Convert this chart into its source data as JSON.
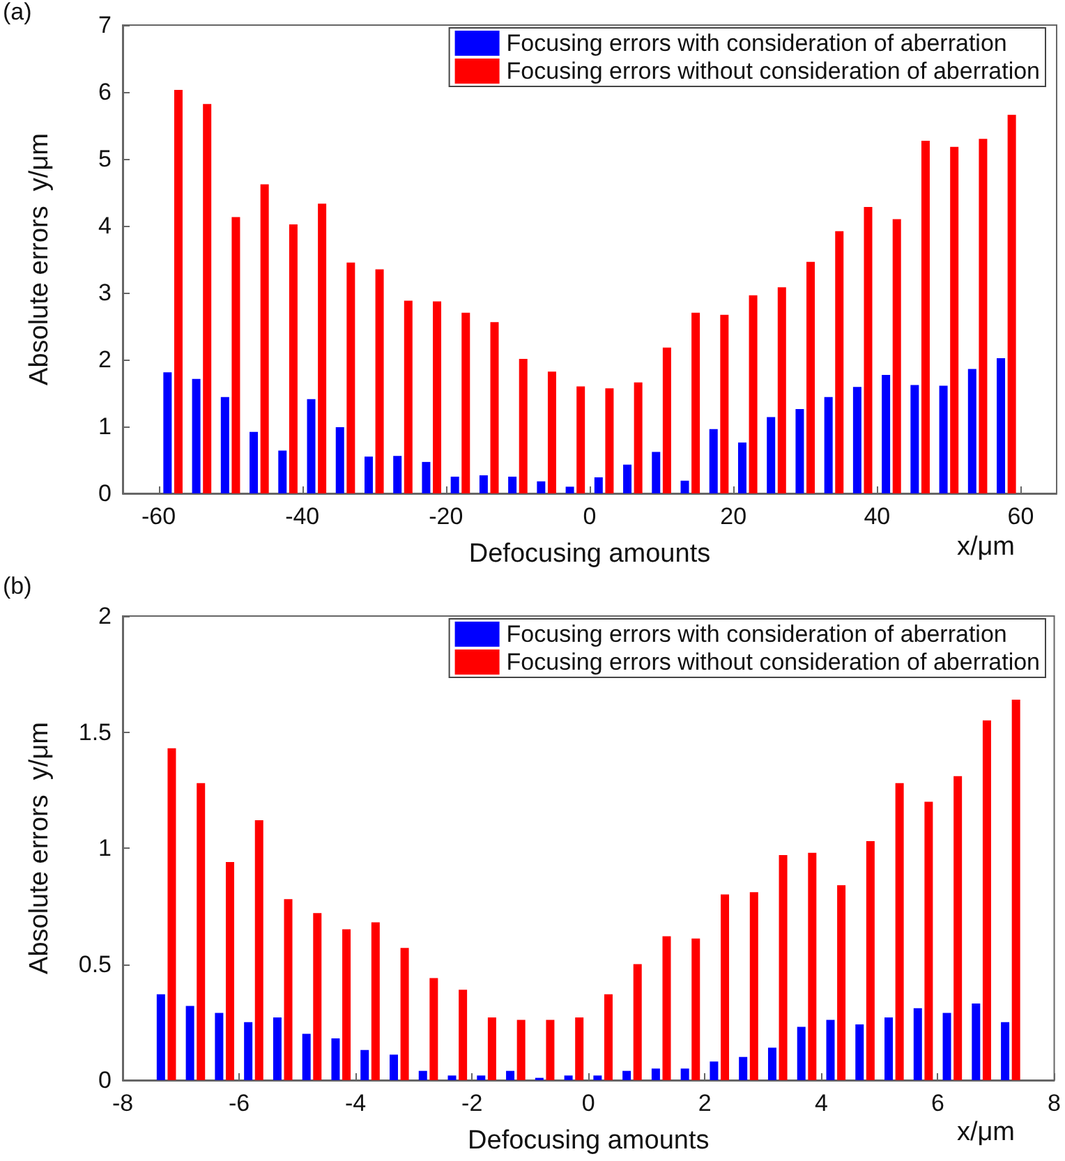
{
  "chart_data": [
    {
      "type": "bar",
      "title": "(a)",
      "xlabel": "Defocusing amounts",
      "ylabel": "Absolute errors  y/μm",
      "annotations": [
        "x/μm"
      ],
      "x": [
        -58,
        -54,
        -50,
        -46,
        -42,
        -38,
        -34,
        -30,
        -26,
        -22,
        -18,
        -14,
        -10,
        -6,
        -2,
        2,
        6,
        10,
        14,
        18,
        22,
        26,
        30,
        34,
        38,
        42,
        46,
        50,
        54,
        58
      ],
      "series": [
        {
          "name": "Focusing errors with consideration of aberration",
          "color": "#0000ff",
          "values": [
            1.81,
            1.71,
            1.44,
            0.92,
            0.64,
            1.41,
            0.99,
            0.55,
            0.56,
            0.47,
            0.25,
            0.27,
            0.25,
            0.18,
            0.1,
            0.24,
            0.43,
            0.62,
            0.19,
            0.96,
            0.76,
            1.14,
            1.26,
            1.44,
            1.59,
            1.77,
            1.62,
            1.61,
            1.86,
            2.02
          ]
        },
        {
          "name": "Focusing errors without consideration of aberration",
          "color": "#ff0000",
          "values": [
            6.03,
            5.82,
            4.13,
            4.62,
            4.02,
            4.33,
            3.45,
            3.35,
            2.88,
            2.87,
            2.7,
            2.56,
            2.01,
            1.82,
            1.6,
            1.57,
            1.66,
            2.18,
            2.7,
            2.67,
            2.96,
            3.08,
            3.46,
            3.92,
            4.28,
            4.1,
            5.27,
            5.18,
            5.3,
            5.66
          ]
        }
      ],
      "xlim": [
        -65,
        65
      ],
      "xticks": [
        -60,
        -40,
        -20,
        0,
        20,
        40,
        60
      ],
      "ylim": [
        0,
        7
      ],
      "yticks": [
        0,
        1,
        2,
        3,
        4,
        5,
        6,
        7
      ],
      "grid": false,
      "legend": "top right"
    },
    {
      "type": "bar",
      "title": "(b)",
      "xlabel": "Defocusing amounts",
      "ylabel": "Absolute errors  y/μm",
      "annotations": [
        "x/μm"
      ],
      "x": [
        -7.25,
        -6.75,
        -6.25,
        -5.75,
        -5.25,
        -4.75,
        -4.25,
        -3.75,
        -3.25,
        -2.75,
        -2.25,
        -1.75,
        -1.25,
        -0.75,
        -0.25,
        0.25,
        0.75,
        1.25,
        1.75,
        2.25,
        2.75,
        3.25,
        3.75,
        4.25,
        4.75,
        5.25,
        5.75,
        6.25,
        6.75,
        7.25
      ],
      "series": [
        {
          "name": "Focusing errors with consideration of aberration",
          "color": "#0000ff",
          "values": [
            0.37,
            0.32,
            0.29,
            0.25,
            0.27,
            0.2,
            0.18,
            0.13,
            0.11,
            0.04,
            0.02,
            0.02,
            0.04,
            0.01,
            0.02,
            0.02,
            0.04,
            0.05,
            0.05,
            0.08,
            0.1,
            0.14,
            0.23,
            0.26,
            0.24,
            0.27,
            0.31,
            0.29,
            0.33,
            0.25
          ]
        },
        {
          "name": "Focusing errors without consideration of aberration",
          "color": "#ff0000",
          "values": [
            1.43,
            1.28,
            0.94,
            1.12,
            0.78,
            0.72,
            0.65,
            0.68,
            0.57,
            0.44,
            0.39,
            0.27,
            0.26,
            0.26,
            0.27,
            0.37,
            0.5,
            0.62,
            0.61,
            0.8,
            0.81,
            0.97,
            0.98,
            0.84,
            1.03,
            1.28,
            1.2,
            1.31,
            1.55,
            1.64
          ]
        }
      ],
      "xlim": [
        -8,
        8
      ],
      "xticks": [
        -8,
        -6,
        -4,
        -2,
        0,
        2,
        4,
        6,
        8
      ],
      "ylim": [
        0,
        2
      ],
      "yticks": [
        0,
        0.5,
        1,
        1.5,
        2
      ],
      "grid": false,
      "legend": "top right"
    }
  ]
}
